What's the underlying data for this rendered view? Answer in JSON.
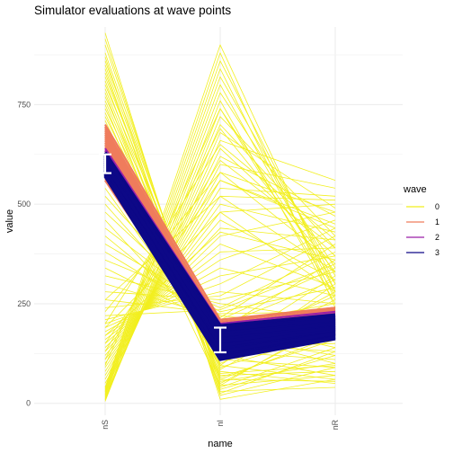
{
  "chart_data": {
    "type": "line",
    "title": "Simulator evaluations at wave points",
    "xlabel": "name",
    "ylabel": "value",
    "categories": [
      "nS",
      "nI",
      "nR"
    ],
    "yticks": [
      0,
      250,
      500,
      750
    ],
    "ylim": [
      -30,
      945
    ],
    "grid": true,
    "legend": {
      "title": "wave",
      "position": "right",
      "entries": [
        "0",
        "1",
        "2",
        "3"
      ]
    },
    "colors": {
      "0": "#f2ef1f",
      "1": "#ef7c5c",
      "2": "#9a1fa8",
      "3": "#0d0887",
      "target_bar": "#ffffff"
    },
    "series": [
      {
        "wave": "0",
        "lines": [
          [
            930,
            10,
            60
          ],
          [
            915,
            30,
            40
          ],
          [
            900,
            45,
            70
          ],
          [
            880,
            60,
            55
          ],
          [
            870,
            20,
            90
          ],
          [
            860,
            80,
            50
          ],
          [
            850,
            55,
            100
          ],
          [
            840,
            25,
            130
          ],
          [
            830,
            70,
            80
          ],
          [
            820,
            95,
            60
          ],
          [
            810,
            40,
            140
          ],
          [
            800,
            110,
            90
          ],
          [
            790,
            65,
            160
          ],
          [
            780,
            35,
            120
          ],
          [
            770,
            120,
            70
          ],
          [
            760,
            90,
            180
          ],
          [
            750,
            50,
            200
          ],
          [
            740,
            130,
            110
          ],
          [
            730,
            75,
            95
          ],
          [
            720,
            140,
            150
          ],
          [
            710,
            100,
            220
          ],
          [
            700,
            60,
            170
          ],
          [
            690,
            150,
            130
          ],
          [
            680,
            85,
            240
          ],
          [
            670,
            160,
            190
          ],
          [
            660,
            115,
            260
          ],
          [
            650,
            45,
            210
          ],
          [
            640,
            170,
            120
          ],
          [
            620,
            125,
            280
          ],
          [
            600,
            180,
            230
          ],
          [
            580,
            95,
            300
          ],
          [
            560,
            190,
            160
          ],
          [
            540,
            135,
            320
          ],
          [
            520,
            200,
            250
          ],
          [
            500,
            175,
            100
          ],
          [
            480,
            210,
            340
          ],
          [
            460,
            145,
            270
          ],
          [
            440,
            220,
            190
          ],
          [
            420,
            185,
            360
          ],
          [
            400,
            230,
            290
          ],
          [
            380,
            205,
            140
          ],
          [
            360,
            240,
            380
          ],
          [
            340,
            195,
            310
          ],
          [
            320,
            250,
            210
          ],
          [
            300,
            215,
            400
          ],
          [
            280,
            260,
            330
          ],
          [
            260,
            225,
            230
          ],
          [
            240,
            270,
            420
          ],
          [
            220,
            235,
            350
          ],
          [
            210,
            280,
            250
          ],
          [
            200,
            300,
            440
          ],
          [
            190,
            320,
            370
          ],
          [
            180,
            340,
            270
          ],
          [
            170,
            360,
            460
          ],
          [
            160,
            380,
            390
          ],
          [
            150,
            400,
            290
          ],
          [
            140,
            420,
            480
          ],
          [
            130,
            440,
            410
          ],
          [
            120,
            460,
            310
          ],
          [
            110,
            480,
            500
          ],
          [
            100,
            500,
            430
          ],
          [
            90,
            520,
            330
          ],
          [
            80,
            540,
            520
          ],
          [
            70,
            560,
            450
          ],
          [
            60,
            580,
            350
          ],
          [
            50,
            600,
            540
          ],
          [
            40,
            620,
            470
          ],
          [
            30,
            640,
            370
          ],
          [
            20,
            660,
            560
          ],
          [
            15,
            680,
            490
          ],
          [
            10,
            700,
            390
          ],
          [
            8,
            720,
            420
          ],
          [
            5,
            740,
            300
          ],
          [
            12,
            760,
            250
          ],
          [
            18,
            780,
            340
          ],
          [
            22,
            800,
            280
          ],
          [
            25,
            820,
            320
          ],
          [
            28,
            840,
            260
          ],
          [
            32,
            860,
            300
          ],
          [
            36,
            880,
            240
          ],
          [
            40,
            900,
            280
          ],
          [
            200,
            650,
            410
          ],
          [
            230,
            580,
            480
          ],
          [
            260,
            520,
            510
          ],
          [
            190,
            480,
            280
          ],
          [
            170,
            430,
            360
          ],
          [
            150,
            560,
            440
          ],
          [
            130,
            610,
            390
          ],
          [
            110,
            690,
            330
          ],
          [
            95,
            740,
            270
          ]
        ]
      },
      {
        "wave": "1",
        "lines": [
          [
            700,
            210,
            240
          ],
          [
            690,
            200,
            235
          ],
          [
            680,
            195,
            230
          ],
          [
            670,
            190,
            225
          ],
          [
            660,
            180,
            220
          ],
          [
            650,
            175,
            215
          ],
          [
            640,
            170,
            210
          ],
          [
            630,
            165,
            205
          ],
          [
            620,
            160,
            200
          ],
          [
            610,
            155,
            195
          ],
          [
            600,
            150,
            190
          ],
          [
            590,
            145,
            185
          ],
          [
            580,
            140,
            180
          ],
          [
            570,
            135,
            175
          ],
          [
            560,
            130,
            170
          ],
          [
            565,
            125,
            178
          ],
          [
            575,
            138,
            188
          ],
          [
            585,
            148,
            198
          ],
          [
            595,
            158,
            208
          ],
          [
            605,
            168,
            218
          ],
          [
            615,
            178,
            228
          ],
          [
            625,
            188,
            232
          ],
          [
            635,
            198,
            236
          ],
          [
            645,
            205,
            240
          ],
          [
            655,
            185,
            222
          ],
          [
            665,
            172,
            212
          ],
          [
            675,
            162,
            202
          ],
          [
            685,
            152,
            192
          ],
          [
            695,
            142,
            182
          ],
          [
            560,
            132,
            172
          ]
        ]
      },
      {
        "wave": "2",
        "lines": [
          [
            640,
            200,
            230
          ],
          [
            630,
            195,
            225
          ],
          [
            620,
            190,
            222
          ],
          [
            610,
            185,
            218
          ],
          [
            600,
            180,
            214
          ],
          [
            595,
            175,
            210
          ],
          [
            590,
            170,
            206
          ],
          [
            585,
            165,
            202
          ],
          [
            580,
            160,
            198
          ],
          [
            575,
            155,
            194
          ],
          [
            605,
            150,
            190
          ],
          [
            615,
            145,
            186
          ],
          [
            625,
            140,
            182
          ],
          [
            635,
            135,
            178
          ]
        ]
      },
      {
        "wave": "3",
        "lines": [
          [
            630,
            195,
            222
          ],
          [
            628,
            192,
            220
          ],
          [
            626,
            189,
            218
          ],
          [
            624,
            186,
            216
          ],
          [
            622,
            183,
            214
          ],
          [
            620,
            180,
            212
          ],
          [
            618,
            177,
            210
          ],
          [
            616,
            174,
            208
          ],
          [
            614,
            171,
            206
          ],
          [
            612,
            168,
            204
          ],
          [
            610,
            165,
            202
          ],
          [
            608,
            162,
            200
          ],
          [
            606,
            159,
            198
          ],
          [
            604,
            156,
            196
          ],
          [
            602,
            153,
            194
          ],
          [
            600,
            150,
            192
          ],
          [
            598,
            147,
            190
          ],
          [
            596,
            144,
            188
          ],
          [
            594,
            141,
            186
          ],
          [
            592,
            138,
            184
          ],
          [
            590,
            135,
            182
          ],
          [
            588,
            132,
            180
          ],
          [
            586,
            129,
            178
          ],
          [
            584,
            126,
            176
          ],
          [
            582,
            123,
            174
          ],
          [
            580,
            120,
            172
          ],
          [
            578,
            118,
            170
          ],
          [
            576,
            116,
            168
          ],
          [
            574,
            114,
            166
          ],
          [
            572,
            112,
            164
          ],
          [
            570,
            110,
            162
          ],
          [
            595,
            188,
            214
          ],
          [
            605,
            175,
            205
          ],
          [
            615,
            160,
            195
          ],
          [
            625,
            145,
            185
          ],
          [
            585,
            130,
            175
          ],
          [
            575,
            115,
            165
          ],
          [
            610,
            185,
            210
          ],
          [
            620,
            170,
            200
          ],
          [
            600,
            155,
            190
          ]
        ]
      }
    ],
    "targets": [
      {
        "category": "nS",
        "low": 578,
        "high": 625
      },
      {
        "category": "nI",
        "low": 128,
        "high": 190
      },
      {
        "category": "nR",
        "low": 0,
        "high": 0
      }
    ]
  }
}
